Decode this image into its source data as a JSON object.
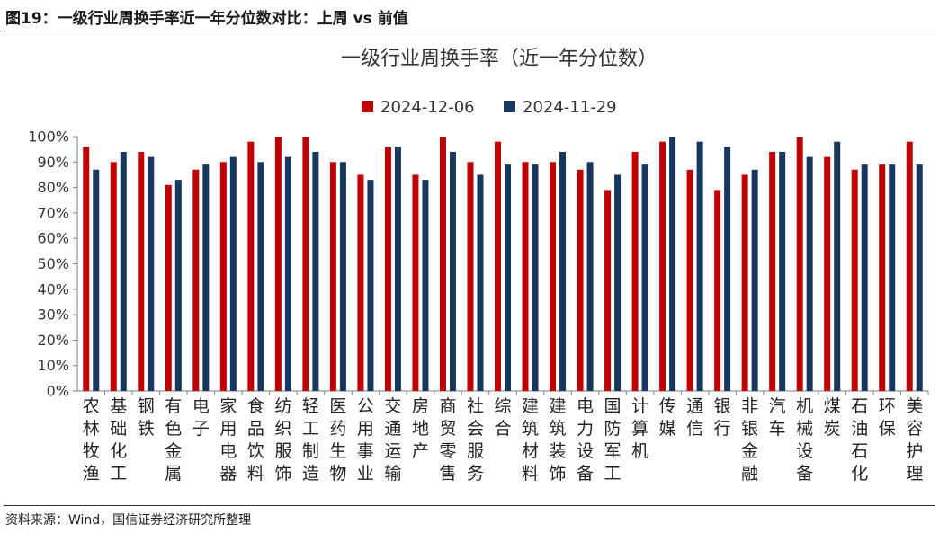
{
  "figure_caption": "图19：一级行业周换手率近一年分位数对比：上周 vs 前值",
  "source_note": "资料来源：Wind，国信证券经济研究所整理",
  "colors": {
    "series_current": "#c00000",
    "series_previous": "#17375e"
  },
  "chart_data": {
    "type": "bar",
    "title": "一级行业周换手率（近一年分位数）",
    "xlabel": "",
    "ylabel": "",
    "ylim": [
      0,
      100
    ],
    "y_ticks": [
      "0%",
      "10%",
      "20%",
      "30%",
      "40%",
      "50%",
      "60%",
      "70%",
      "80%",
      "90%",
      "100%"
    ],
    "grid": false,
    "legend_position": "top-center",
    "categories": [
      "农林牧渔",
      "基础化工",
      "钢铁",
      "有色金属",
      "电子",
      "家用电器",
      "食品饮料",
      "纺织服饰",
      "轻工制造",
      "医药生物",
      "公用事业",
      "交通运输",
      "房地产",
      "商贸零售",
      "社会服务",
      "综合",
      "建筑材料",
      "建筑装饰",
      "电力设备",
      "国防军工",
      "计算机",
      "传媒",
      "通信",
      "银行",
      "非银金融",
      "汽车",
      "机械设备",
      "煤炭",
      "石油石化",
      "环保",
      "美容护理"
    ],
    "series": [
      {
        "name": "2024-12-06",
        "values": [
          96,
          90,
          94,
          81,
          87,
          90,
          98,
          100,
          100,
          90,
          85,
          96,
          85,
          100,
          90,
          98,
          90,
          90,
          87,
          79,
          94,
          98,
          87,
          79,
          85,
          94,
          100,
          92,
          87,
          89,
          98
        ]
      },
      {
        "name": "2024-11-29",
        "values": [
          87,
          94,
          92,
          83,
          89,
          92,
          90,
          92,
          94,
          90,
          83,
          96,
          83,
          94,
          85,
          89,
          89,
          94,
          90,
          85,
          89,
          100,
          98,
          96,
          87,
          94,
          92,
          98,
          89,
          89,
          89
        ]
      }
    ]
  }
}
